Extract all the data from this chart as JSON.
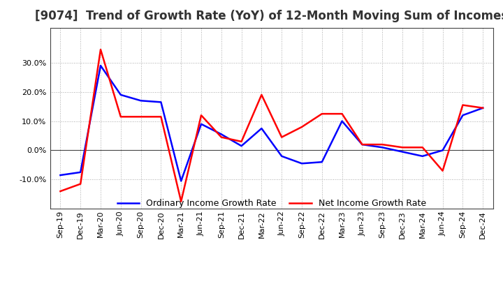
{
  "title": "[9074]  Trend of Growth Rate (YoY) of 12-Month Moving Sum of Incomes",
  "x_labels": [
    "Sep-19",
    "Dec-19",
    "Mar-20",
    "Jun-20",
    "Sep-20",
    "Dec-20",
    "Mar-21",
    "Jun-21",
    "Sep-21",
    "Dec-21",
    "Mar-22",
    "Jun-22",
    "Sep-22",
    "Dec-22",
    "Mar-23",
    "Jun-23",
    "Sep-23",
    "Dec-23",
    "Mar-24",
    "Jun-24",
    "Sep-24",
    "Dec-24"
  ],
  "ordinary_income": [
    -0.085,
    -0.075,
    0.29,
    0.19,
    0.17,
    0.165,
    -0.105,
    0.09,
    0.055,
    0.015,
    0.075,
    -0.02,
    -0.045,
    -0.04,
    0.1,
    0.02,
    0.01,
    -0.005,
    -0.02,
    0.0,
    0.12,
    0.145
  ],
  "net_income": [
    -0.14,
    -0.115,
    0.345,
    0.115,
    0.115,
    0.115,
    -0.175,
    0.12,
    0.045,
    0.03,
    0.19,
    0.045,
    0.08,
    0.125,
    0.125,
    0.02,
    0.02,
    0.01,
    0.01,
    -0.07,
    0.155,
    0.145
  ],
  "ordinary_color": "#0000ff",
  "net_color": "#ff0000",
  "background_color": "#ffffff",
  "plot_bg_color": "#ffffff",
  "grid_color": "#aaaaaa",
  "ylim": [
    -0.2,
    0.42
  ],
  "yticks": [
    -0.1,
    0.0,
    0.1,
    0.2,
    0.3
  ],
  "legend_labels": [
    "Ordinary Income Growth Rate",
    "Net Income Growth Rate"
  ],
  "title_fontsize": 12,
  "tick_fontsize": 8,
  "legend_fontsize": 9,
  "line_width": 1.8
}
